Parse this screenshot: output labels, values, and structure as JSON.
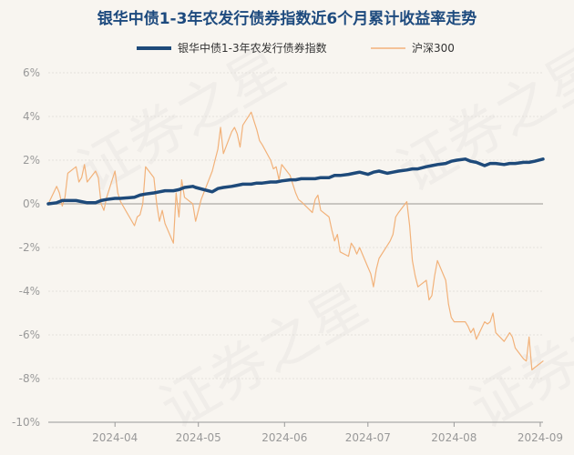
{
  "chart_data": {
    "type": "line",
    "title": "银华中债1-3年农发行债券指数近6个月累计收益率走势",
    "watermark": "证券之星",
    "xlabel": "",
    "ylabel": "",
    "ylim": [
      -10,
      6
    ],
    "yticks": [
      6,
      4,
      2,
      0,
      -2,
      -4,
      -6,
      -8,
      -10
    ],
    "ytick_labels": [
      "6%",
      "4%",
      "2%",
      "0%",
      "-2%",
      "-4%",
      "-6%",
      "-8%",
      "-10%"
    ],
    "xlim": [
      "2024-03-08",
      "2024-09-02"
    ],
    "xticks": [
      "2024-04-01",
      "2024-05-01",
      "2024-06-01",
      "2024-07-01",
      "2024-08-01",
      "2024-09-01"
    ],
    "xtick_labels": [
      "2024-04",
      "2024-05",
      "2024-06",
      "2024-07",
      "2024-08",
      "2024-09"
    ],
    "grid": "horizontal",
    "legend_position": "top-center",
    "series": [
      {
        "name": "银华中债1-3年农发行债券指数",
        "color": "#1e4a7a",
        "points": [
          [
            "2024-03-08",
            0.0
          ],
          [
            "2024-03-11",
            0.05
          ],
          [
            "2024-03-13",
            0.15
          ],
          [
            "2024-03-15",
            0.15
          ],
          [
            "2024-03-18",
            0.15
          ],
          [
            "2024-03-20",
            0.1
          ],
          [
            "2024-03-22",
            0.05
          ],
          [
            "2024-03-25",
            0.05
          ],
          [
            "2024-03-27",
            0.15
          ],
          [
            "2024-03-29",
            0.2
          ],
          [
            "2024-04-01",
            0.25
          ],
          [
            "2024-04-03",
            0.25
          ],
          [
            "2024-04-08",
            0.3
          ],
          [
            "2024-04-10",
            0.4
          ],
          [
            "2024-04-12",
            0.45
          ],
          [
            "2024-04-15",
            0.5
          ],
          [
            "2024-04-17",
            0.55
          ],
          [
            "2024-04-19",
            0.6
          ],
          [
            "2024-04-22",
            0.6
          ],
          [
            "2024-04-24",
            0.65
          ],
          [
            "2024-04-26",
            0.75
          ],
          [
            "2024-04-29",
            0.8
          ],
          [
            "2024-04-30",
            0.75
          ],
          [
            "2024-05-06",
            0.55
          ],
          [
            "2024-05-08",
            0.7
          ],
          [
            "2024-05-10",
            0.75
          ],
          [
            "2024-05-13",
            0.8
          ],
          [
            "2024-05-15",
            0.85
          ],
          [
            "2024-05-17",
            0.9
          ],
          [
            "2024-05-20",
            0.9
          ],
          [
            "2024-05-22",
            0.95
          ],
          [
            "2024-05-24",
            0.95
          ],
          [
            "2024-05-27",
            1.0
          ],
          [
            "2024-05-29",
            1.0
          ],
          [
            "2024-05-31",
            1.05
          ],
          [
            "2024-06-03",
            1.1
          ],
          [
            "2024-06-05",
            1.1
          ],
          [
            "2024-06-07",
            1.15
          ],
          [
            "2024-06-12",
            1.15
          ],
          [
            "2024-06-14",
            1.2
          ],
          [
            "2024-06-17",
            1.2
          ],
          [
            "2024-06-19",
            1.3
          ],
          [
            "2024-06-21",
            1.3
          ],
          [
            "2024-06-24",
            1.35
          ],
          [
            "2024-06-26",
            1.4
          ],
          [
            "2024-06-28",
            1.45
          ],
          [
            "2024-07-01",
            1.35
          ],
          [
            "2024-07-03",
            1.45
          ],
          [
            "2024-07-05",
            1.5
          ],
          [
            "2024-07-08",
            1.4
          ],
          [
            "2024-07-10",
            1.45
          ],
          [
            "2024-07-12",
            1.5
          ],
          [
            "2024-07-15",
            1.55
          ],
          [
            "2024-07-17",
            1.6
          ],
          [
            "2024-07-19",
            1.6
          ],
          [
            "2024-07-22",
            1.7
          ],
          [
            "2024-07-24",
            1.75
          ],
          [
            "2024-07-26",
            1.8
          ],
          [
            "2024-07-29",
            1.85
          ],
          [
            "2024-07-31",
            1.95
          ],
          [
            "2024-08-02",
            2.0
          ],
          [
            "2024-08-05",
            2.05
          ],
          [
            "2024-08-07",
            1.95
          ],
          [
            "2024-08-09",
            1.9
          ],
          [
            "2024-08-12",
            1.75
          ],
          [
            "2024-08-14",
            1.85
          ],
          [
            "2024-08-16",
            1.85
          ],
          [
            "2024-08-19",
            1.8
          ],
          [
            "2024-08-21",
            1.85
          ],
          [
            "2024-08-23",
            1.85
          ],
          [
            "2024-08-26",
            1.9
          ],
          [
            "2024-08-28",
            1.9
          ],
          [
            "2024-08-30",
            1.95
          ],
          [
            "2024-09-02",
            2.05
          ]
        ]
      },
      {
        "name": "沪深300",
        "color": "#f2b27a",
        "points": [
          [
            "2024-03-08",
            0.0
          ],
          [
            "2024-03-11",
            0.8
          ],
          [
            "2024-03-12",
            0.5
          ],
          [
            "2024-03-13",
            -0.1
          ],
          [
            "2024-03-14",
            0.3
          ],
          [
            "2024-03-15",
            1.4
          ],
          [
            "2024-03-18",
            1.7
          ],
          [
            "2024-03-19",
            1.0
          ],
          [
            "2024-03-20",
            1.2
          ],
          [
            "2024-03-21",
            1.8
          ],
          [
            "2024-03-22",
            1.0
          ],
          [
            "2024-03-25",
            1.5
          ],
          [
            "2024-03-26",
            1.2
          ],
          [
            "2024-03-27",
            0.0
          ],
          [
            "2024-03-28",
            -0.3
          ],
          [
            "2024-03-29",
            0.3
          ],
          [
            "2024-04-01",
            1.5
          ],
          [
            "2024-04-02",
            0.5
          ],
          [
            "2024-04-03",
            0.1
          ],
          [
            "2024-04-08",
            -1.0
          ],
          [
            "2024-04-09",
            -0.6
          ],
          [
            "2024-04-10",
            -0.5
          ],
          [
            "2024-04-11",
            0.0
          ],
          [
            "2024-04-12",
            1.7
          ],
          [
            "2024-04-15",
            1.2
          ],
          [
            "2024-04-16",
            0.0
          ],
          [
            "2024-04-17",
            -0.8
          ],
          [
            "2024-04-18",
            -0.3
          ],
          [
            "2024-04-19",
            -0.9
          ],
          [
            "2024-04-22",
            -1.8
          ],
          [
            "2024-04-23",
            0.5
          ],
          [
            "2024-04-24",
            -0.6
          ],
          [
            "2024-04-25",
            1.1
          ],
          [
            "2024-04-26",
            0.3
          ],
          [
            "2024-04-29",
            0.0
          ],
          [
            "2024-04-30",
            -0.8
          ],
          [
            "2024-05-02",
            0.2
          ],
          [
            "2024-05-06",
            1.5
          ],
          [
            "2024-05-07",
            2.0
          ],
          [
            "2024-05-08",
            2.5
          ],
          [
            "2024-05-09",
            3.5
          ],
          [
            "2024-05-10",
            2.3
          ],
          [
            "2024-05-13",
            3.3
          ],
          [
            "2024-05-14",
            3.5
          ],
          [
            "2024-05-15",
            3.2
          ],
          [
            "2024-05-16",
            2.6
          ],
          [
            "2024-05-17",
            3.6
          ],
          [
            "2024-05-20",
            4.2
          ],
          [
            "2024-05-21",
            3.8
          ],
          [
            "2024-05-22",
            3.4
          ],
          [
            "2024-05-23",
            2.9
          ],
          [
            "2024-05-24",
            2.7
          ],
          [
            "2024-05-27",
            2.0
          ],
          [
            "2024-05-28",
            1.6
          ],
          [
            "2024-05-29",
            1.7
          ],
          [
            "2024-05-30",
            1.1
          ],
          [
            "2024-05-31",
            1.8
          ],
          [
            "2024-06-03",
            1.3
          ],
          [
            "2024-06-04",
            0.9
          ],
          [
            "2024-06-05",
            0.5
          ],
          [
            "2024-06-06",
            0.2
          ],
          [
            "2024-06-07",
            0.1
          ],
          [
            "2024-06-11",
            -0.4
          ],
          [
            "2024-06-12",
            0.2
          ],
          [
            "2024-06-13",
            0.4
          ],
          [
            "2024-06-14",
            -0.3
          ],
          [
            "2024-06-17",
            -0.6
          ],
          [
            "2024-06-18",
            -1.2
          ],
          [
            "2024-06-19",
            -1.7
          ],
          [
            "2024-06-20",
            -1.4
          ],
          [
            "2024-06-21",
            -2.2
          ],
          [
            "2024-06-24",
            -2.4
          ],
          [
            "2024-06-25",
            -1.8
          ],
          [
            "2024-06-26",
            -2.0
          ],
          [
            "2024-06-27",
            -2.3
          ],
          [
            "2024-06-28",
            -2.0
          ],
          [
            "2024-07-01",
            -2.9
          ],
          [
            "2024-07-02",
            -3.2
          ],
          [
            "2024-07-03",
            -3.8
          ],
          [
            "2024-07-04",
            -3.0
          ],
          [
            "2024-07-05",
            -2.5
          ],
          [
            "2024-07-08",
            -1.9
          ],
          [
            "2024-07-09",
            -1.7
          ],
          [
            "2024-07-10",
            -1.4
          ],
          [
            "2024-07-11",
            -0.6
          ],
          [
            "2024-07-12",
            -0.4
          ],
          [
            "2024-07-15",
            0.1
          ],
          [
            "2024-07-16",
            -1.0
          ],
          [
            "2024-07-17",
            -2.6
          ],
          [
            "2024-07-18",
            -3.3
          ],
          [
            "2024-07-19",
            -3.8
          ],
          [
            "2024-07-22",
            -3.5
          ],
          [
            "2024-07-23",
            -4.4
          ],
          [
            "2024-07-24",
            -4.2
          ],
          [
            "2024-07-25",
            -3.3
          ],
          [
            "2024-07-26",
            -2.6
          ],
          [
            "2024-07-29",
            -3.5
          ],
          [
            "2024-07-30",
            -4.6
          ],
          [
            "2024-07-31",
            -5.2
          ],
          [
            "2024-08-01",
            -5.4
          ],
          [
            "2024-08-02",
            -5.4
          ],
          [
            "2024-08-05",
            -5.4
          ],
          [
            "2024-08-06",
            -5.6
          ],
          [
            "2024-08-07",
            -5.9
          ],
          [
            "2024-08-08",
            -5.7
          ],
          [
            "2024-08-09",
            -6.2
          ],
          [
            "2024-08-12",
            -5.4
          ],
          [
            "2024-08-13",
            -5.5
          ],
          [
            "2024-08-14",
            -5.4
          ],
          [
            "2024-08-15",
            -5.0
          ],
          [
            "2024-08-16",
            -5.9
          ],
          [
            "2024-08-19",
            -6.3
          ],
          [
            "2024-08-20",
            -6.1
          ],
          [
            "2024-08-21",
            -5.9
          ],
          [
            "2024-08-22",
            -6.1
          ],
          [
            "2024-08-23",
            -6.6
          ],
          [
            "2024-08-26",
            -7.1
          ],
          [
            "2024-08-27",
            -7.2
          ],
          [
            "2024-08-28",
            -6.1
          ],
          [
            "2024-08-29",
            -7.6
          ],
          [
            "2024-08-30",
            -7.5
          ],
          [
            "2024-09-02",
            -7.2
          ]
        ]
      }
    ]
  }
}
